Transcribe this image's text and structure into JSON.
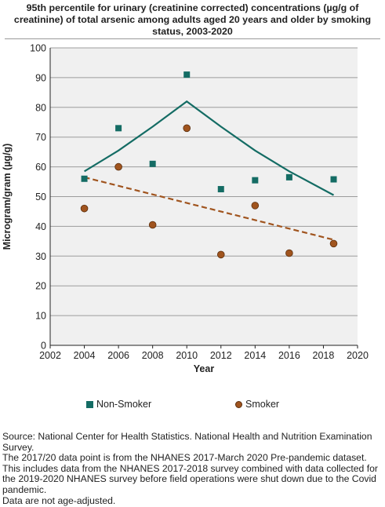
{
  "chart_data": {
    "type": "scatter",
    "title": "95th percentile for urinary (creatinine corrected) concentrations (µg/g of creatinine) of total arsenic among adults aged 20 years and older by smoking status, 2003-2020",
    "xlabel": "Year",
    "ylabel": "Microgram/gram (µg/g)",
    "xlim": [
      2002,
      2020
    ],
    "ylim": [
      0,
      100
    ],
    "x_ticks": [
      "2002",
      "2004",
      "2006",
      "2008",
      "2010",
      "2012",
      "2014",
      "2016",
      "2018",
      "2020"
    ],
    "y_ticks": [
      "0",
      "10",
      "20",
      "30",
      "40",
      "50",
      "60",
      "70",
      "80",
      "90",
      "100"
    ],
    "grid": true,
    "legend_position": "bottom",
    "series": [
      {
        "name": "Non-Smoker",
        "marker": "square",
        "color": "#146c64",
        "points": [
          [
            2004,
            56
          ],
          [
            2006,
            73
          ],
          [
            2008,
            61
          ],
          [
            2010,
            91
          ],
          [
            2012,
            52.5
          ],
          [
            2014,
            55.5
          ],
          [
            2016,
            56.5
          ],
          [
            2018.6,
            55.8
          ]
        ],
        "trend": {
          "style": "solid",
          "points": [
            [
              2004,
              58.5
            ],
            [
              2006,
              65.5
            ],
            [
              2008,
              73.5
            ],
            [
              2010,
              82
            ],
            [
              2012,
              73.5
            ],
            [
              2014,
              65.5
            ],
            [
              2016,
              58.5
            ],
            [
              2018.6,
              50.5
            ]
          ]
        }
      },
      {
        "name": "Smoker",
        "marker": "circle",
        "color": "#a0541e",
        "points": [
          [
            2004,
            46
          ],
          [
            2006,
            60
          ],
          [
            2008,
            40.5
          ],
          [
            2010,
            73
          ],
          [
            2012,
            30.5
          ],
          [
            2014,
            47
          ],
          [
            2016,
            31
          ],
          [
            2018.6,
            34.2
          ]
        ],
        "trend": {
          "style": "dashed",
          "points": [
            [
              2004,
              56.5
            ],
            [
              2018.6,
              35.5
            ]
          ]
        }
      }
    ]
  },
  "legend": {
    "non_smoker": "Non-Smoker",
    "smoker": "Smoker"
  },
  "footnotes": [
    "Source: National Center for Health Statistics. National Health and Nutrition Examination Survey.",
    "The 2017/20 data point is from the NHANES 2017-March 2020 Pre-pandemic dataset. This includes data from the NHANES 2017-2018 survey combined with data collected for the 2019-2020 NHANES survey before field operations were shut down due to the Covid pandemic.",
    "Data are not age-adjusted."
  ]
}
